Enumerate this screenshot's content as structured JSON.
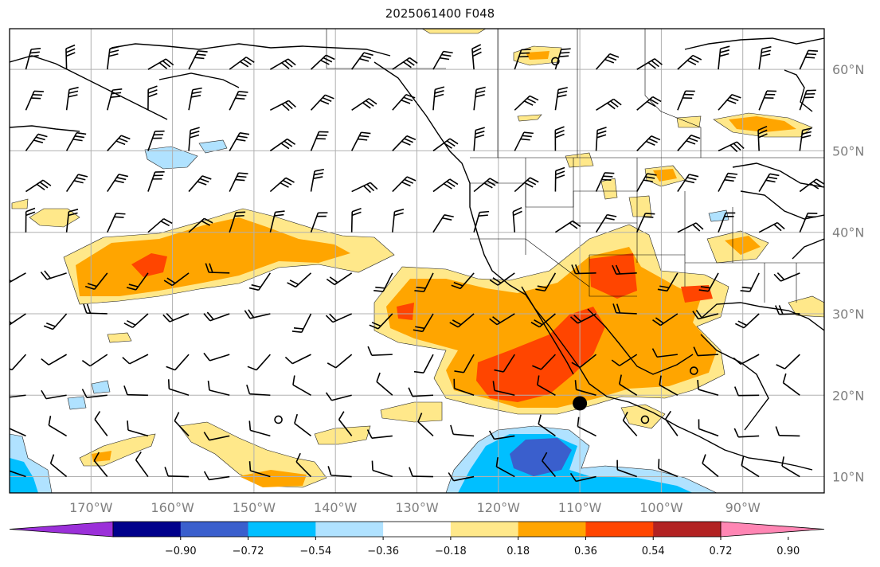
{
  "title": "2025061400 F048",
  "map": {
    "lon_range": [
      -180,
      -80
    ],
    "lat_range": [
      8,
      65
    ],
    "lon_ticks": [
      {
        "value": -170,
        "label": "170°W"
      },
      {
        "value": -160,
        "label": "160°W"
      },
      {
        "value": -150,
        "label": "150°W"
      },
      {
        "value": -140,
        "label": "140°W"
      },
      {
        "value": -130,
        "label": "130°W"
      },
      {
        "value": -120,
        "label": "120°W"
      },
      {
        "value": -110,
        "label": "110°W"
      },
      {
        "value": -100,
        "label": "100°W"
      },
      {
        "value": -90,
        "label": "90°W"
      }
    ],
    "lat_ticks": [
      {
        "value": 10,
        "label": "10°N"
      },
      {
        "value": 20,
        "label": "20°N"
      },
      {
        "value": 30,
        "label": "30°N"
      },
      {
        "value": 40,
        "label": "40°N"
      },
      {
        "value": 50,
        "label": "50°N"
      },
      {
        "value": 60,
        "label": "60°N"
      }
    ],
    "grid": true,
    "markers": [
      {
        "lon": -110,
        "lat": 19,
        "type": "filled-dot"
      },
      {
        "lon": -96,
        "lat": 23,
        "type": "open-circle"
      },
      {
        "lon": -102,
        "lat": 17,
        "type": "open-circle"
      },
      {
        "lon": -147,
        "lat": 17,
        "type": "open-circle"
      },
      {
        "lon": -113,
        "lat": 61,
        "type": "open-circle"
      }
    ]
  },
  "colorbar": {
    "ticks": [
      "−0.90",
      "−0.72",
      "−0.54",
      "−0.36",
      "−0.18",
      "0.18",
      "0.36",
      "0.54",
      "0.72",
      "0.90"
    ],
    "colors": [
      "#9b30d9",
      "#00008b",
      "#3a5fcd",
      "#00bfff",
      "#b0e2ff",
      "#ffffff",
      "#ffe88a",
      "#ffa500",
      "#ff4500",
      "#b22222",
      "#ff86b4"
    ],
    "extend": "both"
  }
}
